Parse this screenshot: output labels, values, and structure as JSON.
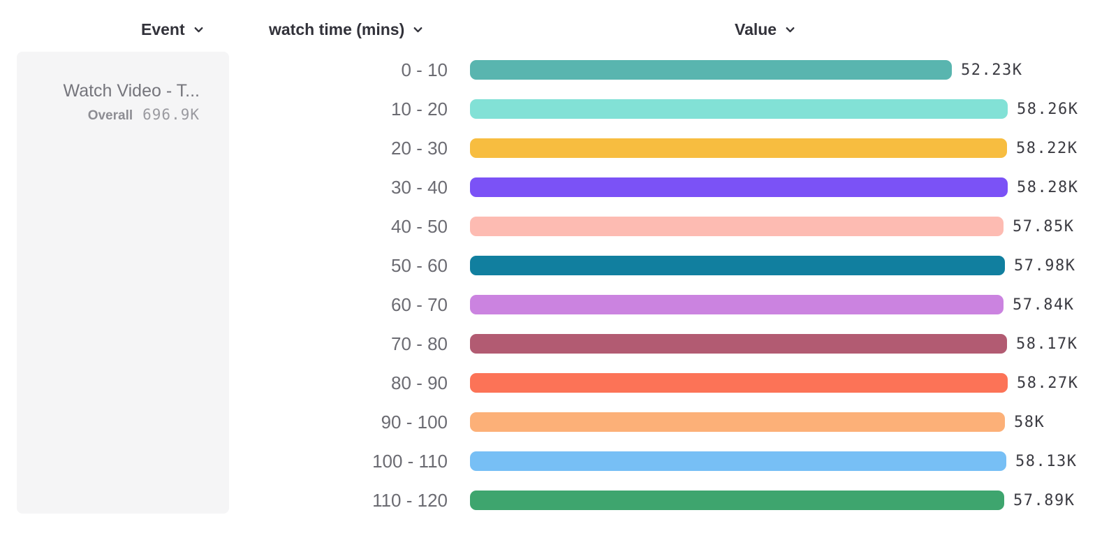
{
  "header": {
    "columns": [
      {
        "label": "Event"
      },
      {
        "label": "watch time (mins)"
      },
      {
        "label": "Value"
      }
    ]
  },
  "event_card": {
    "title": "Watch Video - T...",
    "overall_label": "Overall",
    "overall_value": "696.9K"
  },
  "chart_data": {
    "type": "bar",
    "orientation": "horizontal",
    "title": "",
    "xlabel": "Value",
    "ylabel": "watch time (mins)",
    "grid": false,
    "legend": "none",
    "categories": [
      "0 - 10",
      "10 - 20",
      "20 - 30",
      "30 - 40",
      "40 - 50",
      "50 - 60",
      "60 - 70",
      "70 - 80",
      "80 - 90",
      "90 - 100",
      "100 - 110",
      "110 - 120"
    ],
    "values": [
      52230,
      58260,
      58220,
      58280,
      57850,
      57980,
      57840,
      58170,
      58270,
      58000,
      58130,
      57890
    ],
    "value_labels": [
      "52.23K",
      "58.26K",
      "58.22K",
      "58.28K",
      "57.85K",
      "57.98K",
      "57.84K",
      "58.17K",
      "58.27K",
      "58K",
      "58.13K",
      "57.89K"
    ],
    "colors": [
      "#59b5af",
      "#82e1d6",
      "#f7bd40",
      "#7b52f6",
      "#fdbbb2",
      "#117f9f",
      "#cb83e0",
      "#b25b72",
      "#fc7357",
      "#fcb078",
      "#77bff5",
      "#3ea56e"
    ],
    "value_range": [
      0,
      58280
    ]
  }
}
